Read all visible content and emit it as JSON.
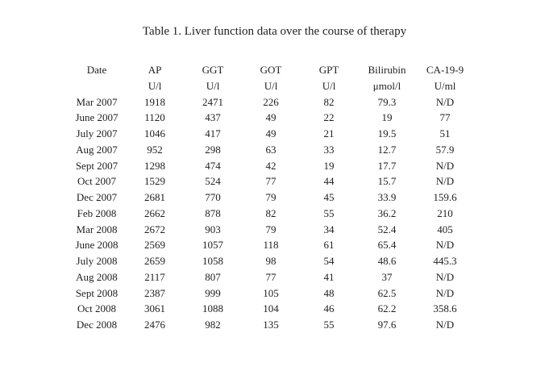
{
  "title": "Table 1. Liver function data over the course of therapy",
  "table": {
    "columns": [
      {
        "label": "Date",
        "unit": ""
      },
      {
        "label": "AP",
        "unit": "U/l"
      },
      {
        "label": "GGT",
        "unit": "U/l"
      },
      {
        "label": "GOT",
        "unit": "U/l"
      },
      {
        "label": "GPT",
        "unit": "U/l"
      },
      {
        "label": "Bilirubin",
        "unit": "μmol/l"
      },
      {
        "label": "CA-19-9",
        "unit": "U/ml"
      }
    ],
    "rows": [
      [
        "Mar 2007",
        "1918",
        "2471",
        "226",
        "82",
        "79.3",
        "N/D"
      ],
      [
        "June 2007",
        "1120",
        "437",
        "49",
        "22",
        "19",
        "77"
      ],
      [
        "July 2007",
        "1046",
        "417",
        "49",
        "21",
        "19.5",
        "51"
      ],
      [
        "Aug 2007",
        "952",
        "298",
        "63",
        "33",
        "12.7",
        "57.9"
      ],
      [
        "Sept 2007",
        "1298",
        "474",
        "42",
        "19",
        "17.7",
        "N/D"
      ],
      [
        "Oct 2007",
        "1529",
        "524",
        "77",
        "44",
        "15.7",
        "N/D"
      ],
      [
        "Dec 2007",
        "2681",
        "770",
        "79",
        "45",
        "33.9",
        "159.6"
      ],
      [
        "Feb 2008",
        "2662",
        "878",
        "82",
        "55",
        "36.2",
        "210"
      ],
      [
        "Mar 2008",
        "2672",
        "903",
        "79",
        "34",
        "52.4",
        "405"
      ],
      [
        "June 2008",
        "2569",
        "1057",
        "118",
        "61",
        "65.4",
        "N/D"
      ],
      [
        "July 2008",
        "2659",
        "1058",
        "98",
        "54",
        "48.6",
        "445.3"
      ],
      [
        "Aug 2008",
        "2117",
        "807",
        "77",
        "41",
        "37",
        "N/D"
      ],
      [
        "Sept 2008",
        "2387",
        "999",
        "105",
        "48",
        "62.5",
        "N/D"
      ],
      [
        "Oct 2008",
        "3061",
        "1088",
        "104",
        "46",
        "62.2",
        "358.6"
      ],
      [
        "Dec 2008",
        "2476",
        "982",
        "135",
        "55",
        "97.6",
        "N/D"
      ]
    ]
  }
}
